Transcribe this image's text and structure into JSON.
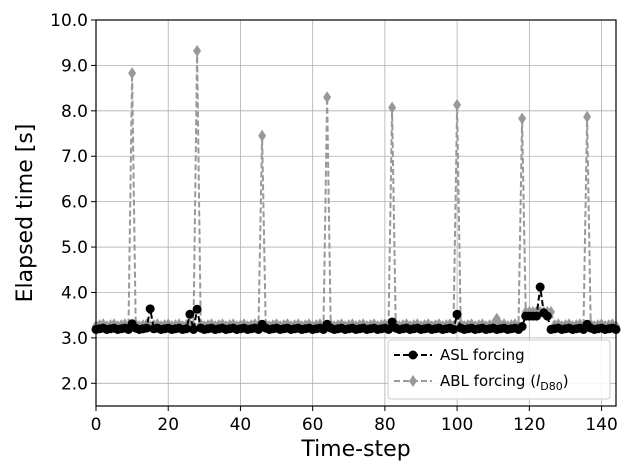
{
  "chart_data": {
    "type": "line",
    "xlabel": "Time-step",
    "ylabel": "Elapsed time [s]",
    "xlim": [
      0,
      144
    ],
    "ylim": [
      1.5,
      10.0
    ],
    "x_ticks": [
      0,
      20,
      40,
      60,
      80,
      100,
      120,
      140
    ],
    "y_ticks": [
      2.0,
      3.0,
      4.0,
      5.0,
      6.0,
      7.0,
      8.0,
      9.0,
      10.0
    ],
    "grid": true,
    "legend_position": "lower-right",
    "series": [
      {
        "name": "ASL forcing",
        "color": "#000000",
        "marker": "circle",
        "linestyle": "dashed",
        "baseline": 3.2,
        "spikes": [
          [
            10,
            3.31
          ],
          [
            15,
            3.64
          ],
          [
            26,
            3.52
          ],
          [
            28,
            3.63
          ],
          [
            46,
            3.3
          ],
          [
            64,
            3.3
          ],
          [
            82,
            3.35
          ],
          [
            100,
            3.52
          ],
          [
            118,
            3.25
          ],
          [
            123,
            4.12
          ],
          [
            124,
            3.55
          ],
          [
            136,
            3.3
          ]
        ],
        "plateaus": [
          [
            119,
            125,
            3.48
          ]
        ]
      },
      {
        "name": "ABL forcing",
        "label_sub": "D80",
        "label_italic": "l",
        "color": "#999999",
        "marker": "diamond",
        "linestyle": "dashed",
        "baseline": 3.28,
        "spikes": [
          [
            10,
            8.83
          ],
          [
            28,
            9.32
          ],
          [
            46,
            7.45
          ],
          [
            64,
            8.3
          ],
          [
            82,
            8.07
          ],
          [
            100,
            8.13
          ],
          [
            111,
            3.42
          ],
          [
            118,
            7.83
          ],
          [
            136,
            7.87
          ]
        ],
        "plateaus": [
          [
            119,
            126,
            3.57
          ]
        ]
      }
    ]
  }
}
